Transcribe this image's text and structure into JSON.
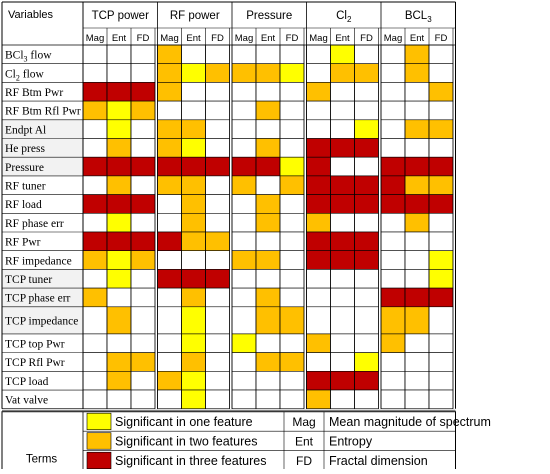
{
  "header": {
    "variables_label": "Variables",
    "groups": [
      "TCP power",
      "RF power",
      "Pressure",
      "Cl",
      "BCL"
    ],
    "group_subscripts": [
      "",
      "",
      "",
      "2",
      "3"
    ],
    "subheaders": [
      "Mag",
      "Ent",
      "FD"
    ]
  },
  "colors": {
    "level1": "#FFFF00",
    "level2": "#FFC000",
    "level3": "#C00000",
    "empty": "#FFFFFF",
    "shaded_label": "#F2F2F2",
    "grid": "#000000"
  },
  "rows": [
    {
      "label": "BCl",
      "sub": "3",
      "tail": " flow",
      "shaded": false,
      "cells": [
        0,
        0,
        0,
        2,
        0,
        0,
        0,
        0,
        0,
        0,
        1,
        0,
        0,
        2,
        0
      ]
    },
    {
      "label": "Cl",
      "sub": "2",
      "tail": " flow",
      "shaded": false,
      "cells": [
        0,
        0,
        0,
        2,
        1,
        2,
        2,
        2,
        1,
        0,
        2,
        2,
        0,
        2,
        0
      ]
    },
    {
      "label": "RF Btm Pwr",
      "sub": "",
      "tail": "",
      "shaded": false,
      "cells": [
        3,
        3,
        3,
        2,
        0,
        0,
        0,
        0,
        0,
        2,
        0,
        0,
        0,
        0,
        2
      ]
    },
    {
      "label": "RF Btm Rfl Pwr",
      "sub": "",
      "tail": "",
      "shaded": false,
      "cells": [
        2,
        1,
        2,
        0,
        0,
        0,
        0,
        2,
        0,
        0,
        0,
        0,
        0,
        0,
        0
      ]
    },
    {
      "label": "Endpt Al",
      "sub": "",
      "tail": "",
      "shaded": true,
      "cells": [
        0,
        1,
        0,
        2,
        2,
        0,
        0,
        0,
        0,
        0,
        0,
        1,
        0,
        2,
        2
      ]
    },
    {
      "label": "He press",
      "sub": "",
      "tail": "",
      "shaded": true,
      "cells": [
        0,
        2,
        0,
        2,
        1,
        0,
        0,
        2,
        0,
        3,
        3,
        3,
        0,
        0,
        0
      ]
    },
    {
      "label": "Pressure",
      "sub": "",
      "tail": "",
      "shaded": true,
      "cells": [
        3,
        3,
        3,
        3,
        3,
        3,
        3,
        3,
        1,
        3,
        0,
        0,
        3,
        3,
        3
      ]
    },
    {
      "label": "RF tuner",
      "sub": "",
      "tail": "",
      "shaded": false,
      "cells": [
        0,
        2,
        0,
        2,
        2,
        0,
        2,
        0,
        2,
        3,
        3,
        3,
        3,
        2,
        2
      ]
    },
    {
      "label": "RF load",
      "sub": "",
      "tail": "",
      "shaded": false,
      "cells": [
        3,
        3,
        3,
        0,
        2,
        0,
        0,
        2,
        0,
        3,
        3,
        3,
        3,
        3,
        3
      ]
    },
    {
      "label": "RF phase err",
      "sub": "",
      "tail": "",
      "shaded": false,
      "cells": [
        0,
        1,
        0,
        0,
        2,
        0,
        0,
        2,
        0,
        2,
        0,
        0,
        0,
        2,
        0
      ]
    },
    {
      "label": "RF Pwr",
      "sub": "",
      "tail": "",
      "shaded": false,
      "cells": [
        3,
        3,
        3,
        3,
        2,
        2,
        0,
        0,
        0,
        3,
        3,
        3,
        0,
        0,
        0
      ]
    },
    {
      "label": "RF impedance",
      "sub": "",
      "tail": "",
      "shaded": false,
      "cells": [
        2,
        1,
        2,
        0,
        0,
        0,
        2,
        2,
        0,
        3,
        3,
        3,
        0,
        0,
        1
      ]
    },
    {
      "label": "TCP tuner",
      "sub": "",
      "tail": "",
      "shaded": true,
      "cells": [
        0,
        1,
        0,
        3,
        3,
        3,
        0,
        0,
        0,
        0,
        0,
        0,
        0,
        0,
        1
      ]
    },
    {
      "label": "TCP phase err",
      "sub": "",
      "tail": "",
      "shaded": true,
      "cells": [
        2,
        0,
        0,
        0,
        2,
        0,
        0,
        2,
        0,
        0,
        0,
        0,
        3,
        3,
        3
      ]
    },
    {
      "label": "TCP impedance",
      "sub": "",
      "tail": "",
      "shaded": true,
      "tall": true,
      "cells": [
        0,
        2,
        0,
        0,
        1,
        0,
        0,
        2,
        2,
        0,
        0,
        0,
        2,
        2,
        0
      ]
    },
    {
      "label": "TCP top Pwr",
      "sub": "",
      "tail": "",
      "shaded": false,
      "cells": [
        0,
        0,
        0,
        0,
        1,
        0,
        1,
        0,
        0,
        2,
        0,
        0,
        2,
        0,
        0
      ]
    },
    {
      "label": "TCP Rfl Pwr",
      "sub": "",
      "tail": "",
      "shaded": false,
      "cells": [
        0,
        2,
        2,
        0,
        2,
        0,
        0,
        2,
        2,
        0,
        0,
        1,
        0,
        0,
        0
      ]
    },
    {
      "label": "TCP load",
      "sub": "",
      "tail": "",
      "shaded": false,
      "cells": [
        0,
        2,
        0,
        2,
        1,
        0,
        0,
        0,
        0,
        3,
        3,
        3,
        0,
        0,
        0
      ]
    },
    {
      "label": "Vat valve",
      "sub": "",
      "tail": "",
      "shaded": false,
      "cells": [
        0,
        0,
        0,
        0,
        1,
        0,
        0,
        0,
        0,
        2,
        0,
        0,
        0,
        0,
        0
      ]
    }
  ],
  "legend": {
    "terms_label": "Terms",
    "levels": [
      {
        "level": 1,
        "text": "Significant in one feature"
      },
      {
        "level": 2,
        "text": "Significant in two features"
      },
      {
        "level": 3,
        "text": "Significant in three features"
      }
    ],
    "abbreviations": [
      {
        "abbr": "Mag",
        "text": "Mean magnitude of spectrum"
      },
      {
        "abbr": "Ent",
        "text": "Entropy"
      },
      {
        "abbr": "FD",
        "text": "Fractal dimension"
      }
    ]
  }
}
